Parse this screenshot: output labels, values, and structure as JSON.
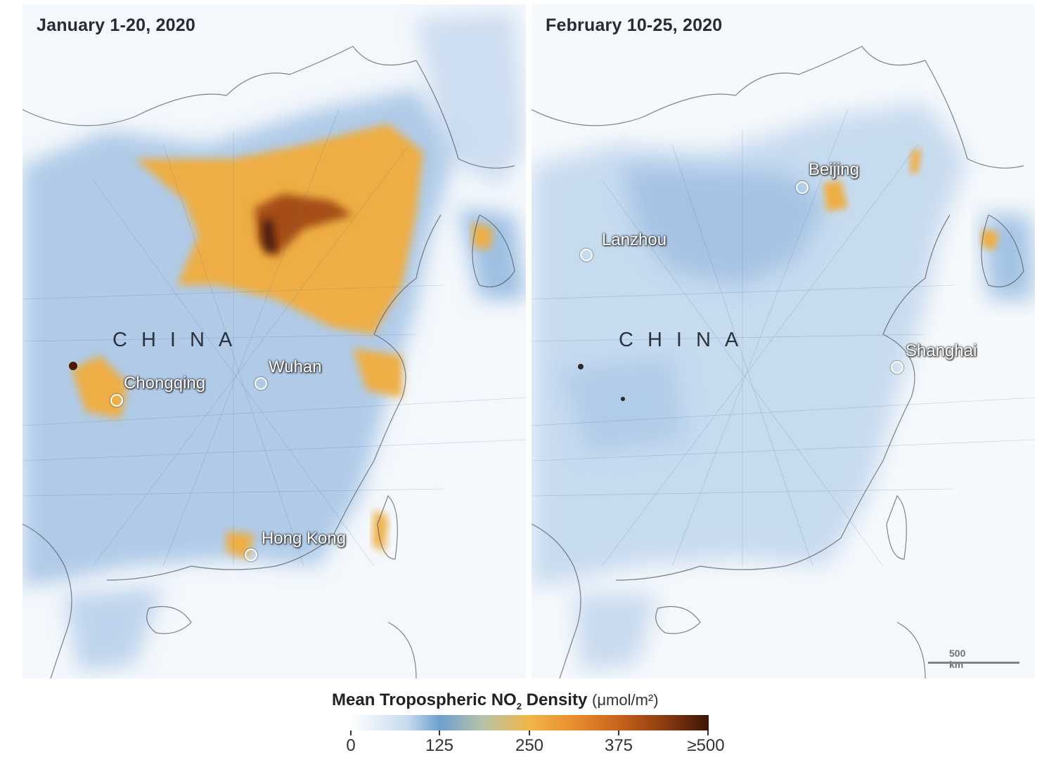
{
  "panels": [
    {
      "title": "January 1-20, 2020",
      "country": "CHINA",
      "cities": [
        "Chongqing",
        "Wuhan",
        "Hong Kong"
      ]
    },
    {
      "title": "February 10-25, 2020",
      "country": "CHINA",
      "cities": [
        "Beijing",
        "Lanzhou",
        "Shanghai"
      ],
      "scale_label": "500 km"
    }
  ],
  "legend": {
    "title_main": "Mean Tropospheric NO",
    "title_sub": "2",
    "title_end": " Density",
    "unit": "(μmol/m²)",
    "ticks": [
      "0",
      "125",
      "250",
      "375",
      "≥500"
    ]
  },
  "colors": {
    "low": "#ffffff",
    "mid_blue": "#6e9fcf",
    "orange": "#f1b54a",
    "dark_brown": "#3b1505",
    "ocean": "#edf3f9"
  }
}
